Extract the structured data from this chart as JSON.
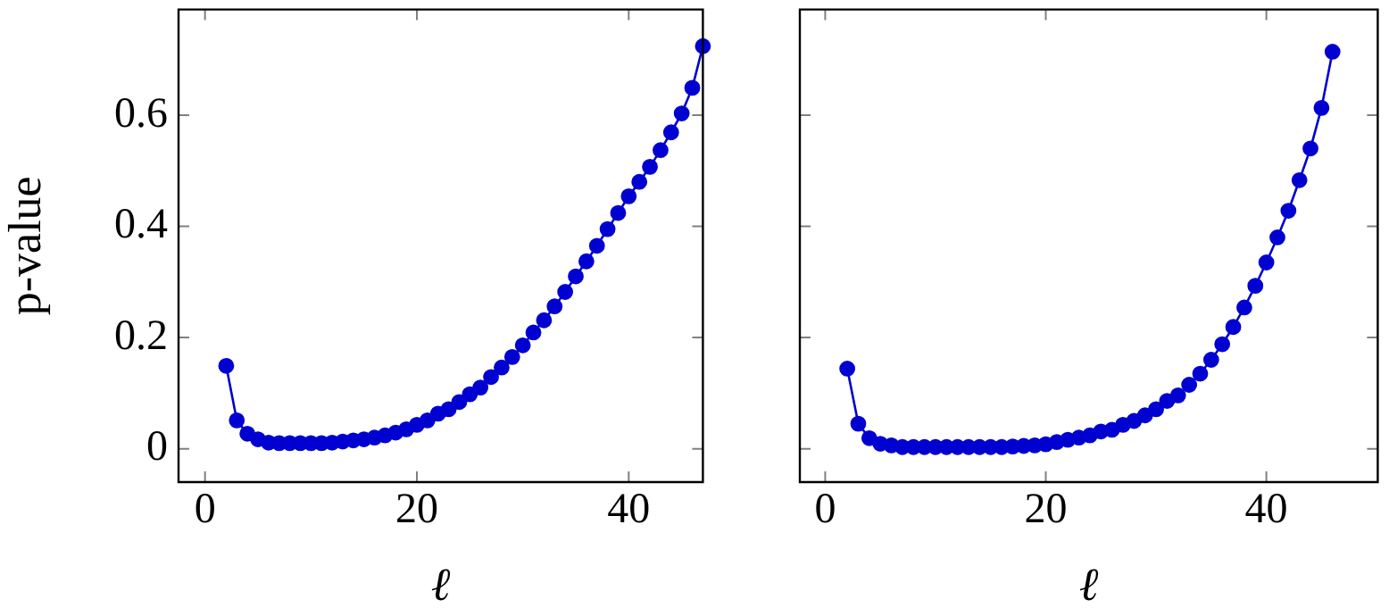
{
  "chart_data": [
    {
      "type": "line",
      "ylabel": "p-value",
      "xlabel": "ℓ",
      "x": [
        2,
        3,
        4,
        5,
        6,
        7,
        8,
        9,
        10,
        11,
        12,
        13,
        14,
        15,
        16,
        17,
        18,
        19,
        20,
        21,
        22,
        23,
        24,
        25,
        26,
        27,
        28,
        29,
        30,
        31,
        32,
        33,
        34,
        35,
        36,
        37,
        38,
        39,
        40,
        41,
        42,
        43,
        44,
        45,
        46,
        47
      ],
      "series": [
        {
          "color": "#0000d0",
          "values": [
            0.149,
            0.051,
            0.027,
            0.017,
            0.011,
            0.01,
            0.01,
            0.01,
            0.01,
            0.01,
            0.011,
            0.013,
            0.015,
            0.017,
            0.02,
            0.024,
            0.029,
            0.035,
            0.043,
            0.051,
            0.063,
            0.071,
            0.084,
            0.098,
            0.11,
            0.129,
            0.146,
            0.165,
            0.186,
            0.209,
            0.231,
            0.256,
            0.282,
            0.31,
            0.337,
            0.365,
            0.395,
            0.424,
            0.454,
            0.48,
            0.507,
            0.537,
            0.569,
            0.603,
            0.649,
            0.724
          ]
        }
      ],
      "xlim": [
        -2.5,
        47
      ],
      "ylim": [
        -0.06,
        0.79
      ],
      "xticks": [
        0,
        20,
        40
      ],
      "yticks": [
        0,
        0.2,
        0.4,
        0.6
      ],
      "marker": "circle",
      "line_style": "solid",
      "grid": false,
      "legend": false
    },
    {
      "type": "line",
      "xlabel": "ℓ",
      "x": [
        2,
        3,
        4,
        5,
        6,
        7,
        8,
        9,
        10,
        11,
        12,
        13,
        14,
        15,
        16,
        17,
        18,
        19,
        20,
        21,
        22,
        23,
        24,
        25,
        26,
        27,
        28,
        29,
        30,
        31,
        32,
        33,
        34,
        35,
        36,
        37,
        38,
        39,
        40,
        41,
        42,
        43,
        44,
        45,
        46
      ],
      "series": [
        {
          "color": "#0000d0",
          "values": [
            0.144,
            0.045,
            0.019,
            0.009,
            0.006,
            0.003,
            0.003,
            0.003,
            0.003,
            0.003,
            0.003,
            0.003,
            0.003,
            0.003,
            0.003,
            0.004,
            0.005,
            0.006,
            0.008,
            0.012,
            0.016,
            0.02,
            0.024,
            0.031,
            0.034,
            0.043,
            0.05,
            0.06,
            0.071,
            0.086,
            0.096,
            0.115,
            0.135,
            0.16,
            0.188,
            0.219,
            0.254,
            0.293,
            0.335,
            0.38,
            0.428,
            0.483,
            0.54,
            0.613,
            0.714
          ]
        }
      ],
      "xlim": [
        -2.3,
        50.1
      ],
      "ylim": [
        -0.06,
        0.79
      ],
      "xticks": [
        0,
        20,
        40
      ],
      "yticks": [
        0,
        0.2,
        0.4,
        0.6
      ],
      "tick_labels": "x",
      "marker": "circle",
      "line_style": "solid",
      "grid": false,
      "legend": false
    }
  ]
}
